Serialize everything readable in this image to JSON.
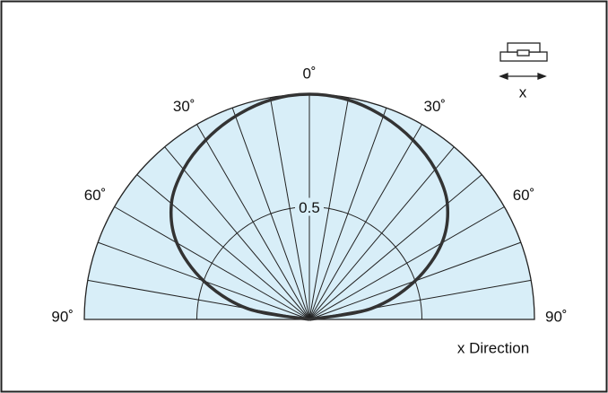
{
  "chart_data": {
    "type": "polar",
    "theta": [
      -90,
      -80,
      -70,
      -60,
      -50,
      -40,
      -30,
      -20,
      -10,
      0,
      10,
      20,
      30,
      40,
      50,
      60,
      70,
      80,
      90
    ],
    "r": [
      0,
      0.28,
      0.5,
      0.68,
      0.8,
      0.87,
      0.92,
      0.96,
      0.99,
      1.0,
      0.99,
      0.96,
      0.92,
      0.87,
      0.8,
      0.68,
      0.5,
      0.28,
      0
    ],
    "color": "#333333",
    "fill": "#d8eef8",
    "rlim": [
      0,
      1
    ],
    "rticks": [
      0.5
    ],
    "thetalim": [
      -90,
      90
    ],
    "thetagrid": [
      -90,
      -80,
      -70,
      -60,
      -50,
      -40,
      -30,
      -20,
      -10,
      0,
      10,
      20,
      30,
      40,
      50,
      60,
      70,
      80,
      90
    ],
    "thetaticks": [
      {
        "value": -90,
        "label": "90˚"
      },
      {
        "value": -60,
        "label": "60˚"
      },
      {
        "value": -30,
        "label": "30˚"
      },
      {
        "value": 0,
        "label": "0˚"
      },
      {
        "value": 30,
        "label": "30˚"
      },
      {
        "value": 60,
        "label": "60˚"
      },
      {
        "value": 90,
        "label": "90˚"
      }
    ],
    "annotations": [
      "x",
      "x Direction"
    ]
  }
}
